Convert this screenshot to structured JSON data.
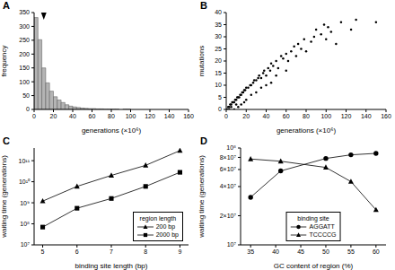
{
  "chart_data": [
    {
      "type": "histogram",
      "title": "A",
      "x_label": "generations (×10⁶)",
      "y_label": "frequency",
      "bins": [
        0,
        4,
        8,
        12,
        16,
        20,
        24,
        28,
        32,
        36,
        40,
        44,
        48,
        52,
        56,
        60,
        64,
        68,
        72,
        76,
        80,
        84,
        88,
        92,
        96,
        100
      ],
      "counts": [
        332,
        252,
        150,
        96,
        66,
        46,
        34,
        25,
        17,
        12,
        9,
        7,
        5,
        4,
        3,
        3,
        2,
        2,
        1,
        1,
        1,
        1,
        0,
        1,
        1
      ],
      "mean_marker": 10,
      "color": "#b4b4b4",
      "xlim": [
        0,
        160
      ],
      "xticks": [
        0,
        20,
        40,
        60,
        80,
        100,
        120,
        140,
        160
      ],
      "ylim": [
        0,
        350
      ],
      "yticks": [
        0,
        50,
        100,
        150,
        200,
        250,
        300,
        350
      ],
      "grid": false
    },
    {
      "type": "scatter",
      "title": "B",
      "x_label": "generations (×10⁶)",
      "y_label": "mutations",
      "x": [
        1,
        2,
        3,
        4,
        5,
        6,
        7,
        8,
        9,
        10,
        11,
        12,
        13,
        14,
        15,
        16,
        17,
        18,
        19,
        20,
        22,
        24,
        25,
        27,
        28,
        30,
        32,
        33,
        35,
        37,
        38,
        40,
        42,
        44,
        45,
        47,
        50,
        52,
        55,
        57,
        60,
        62,
        65,
        68,
        70,
        72,
        75,
        78,
        80,
        85,
        88,
        90,
        95,
        98,
        100,
        102,
        105,
        110,
        115,
        125,
        130,
        150,
        3,
        5,
        8,
        10,
        12,
        15,
        18,
        20,
        25,
        30,
        35,
        40,
        45,
        50,
        60
      ],
      "values": [
        0,
        1,
        1,
        2,
        2,
        3,
        3,
        3,
        4,
        4,
        5,
        5,
        5,
        6,
        6,
        7,
        7,
        8,
        8,
        9,
        9,
        10,
        10,
        11,
        12,
        12,
        13,
        14,
        13,
        15,
        16,
        14,
        17,
        16,
        19,
        18,
        20,
        17,
        22,
        21,
        23,
        20,
        24,
        26,
        22,
        27,
        25,
        29,
        24,
        28,
        30,
        33,
        31,
        35,
        29,
        34,
        32,
        27,
        36,
        33,
        37,
        36,
        0,
        1,
        0,
        2,
        1,
        2,
        3,
        4,
        6,
        7,
        9,
        10,
        11,
        14,
        16
      ],
      "color": "#000000",
      "marker": "circle",
      "xlim": [
        0,
        160
      ],
      "xticks": [
        0,
        20,
        40,
        60,
        80,
        100,
        120,
        140,
        160
      ],
      "ylim": [
        0,
        40
      ],
      "yticks": [
        0,
        5,
        10,
        15,
        20,
        25,
        30,
        35,
        40
      ],
      "grid": false
    },
    {
      "type": "line",
      "title": "C",
      "x_label": "binding site length (bp)",
      "y_label": "waiting time (generations)",
      "legend_title": "region length",
      "legend": "lower right",
      "log": "y",
      "grid": false,
      "x": [
        5,
        6,
        7,
        8,
        9
      ],
      "series": [
        {
          "name": "200 bp",
          "color": "#000000",
          "marker": "triangle",
          "values": [
            1200000000,
            6000000000,
            20000000000,
            60000000000,
            300000000000
          ]
        },
        {
          "name": "2000 bp",
          "color": "#000000",
          "marker": "square",
          "values": [
            70000000,
            550000000,
            1600000000,
            6000000000,
            28000000000
          ]
        }
      ],
      "xlim": [
        4.75,
        9.25
      ],
      "xticks": [
        5,
        6,
        7,
        8,
        9
      ],
      "ylim": [
        10000000,
        400000000000
      ],
      "yticks": [
        {
          "value": 10000000,
          "label": "10⁷"
        },
        {
          "value": 100000000,
          "label": "10⁸"
        },
        {
          "value": 1000000000,
          "label": "10⁹"
        },
        {
          "value": 10000000000,
          "label": "10¹⁰"
        },
        {
          "value": 100000000000,
          "label": "10¹¹"
        }
      ]
    },
    {
      "type": "line",
      "title": "D",
      "x_label": "GC content of region (%)",
      "y_label": "waiting time (generations)",
      "legend_title": "binding site",
      "legend": "lower center",
      "log": "y",
      "grid": false,
      "x": [
        35,
        41,
        50,
        55,
        60
      ],
      "series": [
        {
          "name": "AGGATT",
          "color": "#000000",
          "marker": "circle",
          "values": [
            31000000,
            58000000,
            78000000,
            85000000,
            88000000
          ]
        },
        {
          "name": "TCCCCG",
          "color": "#000000",
          "marker": "triangle",
          "values": [
            77000000,
            73000000,
            63000000,
            45000000,
            23000000
          ]
        }
      ],
      "xlim": [
        33,
        62
      ],
      "xticks": [
        35,
        40,
        45,
        50,
        55,
        60
      ],
      "ylim": [
        10000000,
        100000000
      ],
      "yticks": [
        {
          "value": 10000000,
          "label": "10⁷"
        },
        {
          "value": 20000000,
          "label": "2×10⁷"
        },
        {
          "value": 40000000,
          "label": "4×10⁷"
        },
        {
          "value": 60000000,
          "label": "6×10⁷"
        },
        {
          "value": 80000000,
          "label": "8×10⁷"
        },
        {
          "value": 100000000,
          "label": "10⁸"
        }
      ]
    }
  ]
}
